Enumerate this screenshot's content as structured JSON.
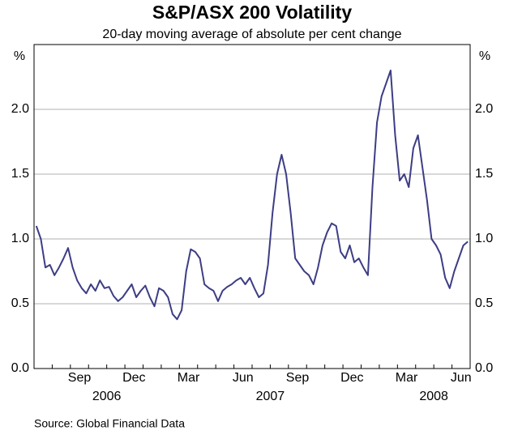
{
  "chart_data": {
    "type": "line",
    "title": "S&P/ASX 200 Volatility",
    "subtitle": "20-day moving average of absolute per cent change",
    "y_unit": "%",
    "source": "Source: Global Financial Data",
    "x": [
      "2006-07",
      "2006-07",
      "2006-07",
      "2006-07",
      "2006-08",
      "2006-08",
      "2006-08",
      "2006-08",
      "2006-09",
      "2006-09",
      "2006-09",
      "2006-09",
      "2006-10",
      "2006-10",
      "2006-10",
      "2006-10",
      "2006-11",
      "2006-11",
      "2006-11",
      "2006-11",
      "2006-12",
      "2006-12",
      "2006-12",
      "2006-12",
      "2007-01",
      "2007-01",
      "2007-01",
      "2007-01",
      "2007-02",
      "2007-02",
      "2007-02",
      "2007-02",
      "2007-03",
      "2007-03",
      "2007-03",
      "2007-03",
      "2007-04",
      "2007-04",
      "2007-04",
      "2007-04",
      "2007-05",
      "2007-05",
      "2007-05",
      "2007-05",
      "2007-06",
      "2007-06",
      "2007-06",
      "2007-06",
      "2007-07",
      "2007-07",
      "2007-07",
      "2007-07",
      "2007-08",
      "2007-08",
      "2007-08",
      "2007-08",
      "2007-09",
      "2007-09",
      "2007-09",
      "2007-09",
      "2007-10",
      "2007-10",
      "2007-10",
      "2007-10",
      "2007-11",
      "2007-11",
      "2007-11",
      "2007-11",
      "2007-12",
      "2007-12",
      "2007-12",
      "2007-12",
      "2008-01",
      "2008-01",
      "2008-01",
      "2008-01",
      "2008-02",
      "2008-02",
      "2008-02",
      "2008-02",
      "2008-03",
      "2008-03",
      "2008-03",
      "2008-03",
      "2008-04",
      "2008-04",
      "2008-04",
      "2008-04",
      "2008-05",
      "2008-05",
      "2008-05",
      "2008-05",
      "2008-06",
      "2008-06",
      "2008-06",
      "2008-06"
    ],
    "series": [
      {
        "name": "S&P/ASX 200",
        "color": "#3d3d85",
        "values": [
          1.1,
          1.0,
          0.78,
          0.8,
          0.72,
          0.78,
          0.85,
          0.93,
          0.78,
          0.68,
          0.62,
          0.58,
          0.65,
          0.6,
          0.68,
          0.62,
          0.63,
          0.56,
          0.52,
          0.55,
          0.6,
          0.65,
          0.55,
          0.6,
          0.64,
          0.55,
          0.48,
          0.62,
          0.6,
          0.55,
          0.42,
          0.38,
          0.45,
          0.75,
          0.92,
          0.9,
          0.85,
          0.65,
          0.62,
          0.6,
          0.52,
          0.6,
          0.63,
          0.65,
          0.68,
          0.7,
          0.65,
          0.7,
          0.62,
          0.55,
          0.58,
          0.8,
          1.2,
          1.5,
          1.65,
          1.5,
          1.2,
          0.85,
          0.8,
          0.75,
          0.72,
          0.65,
          0.78,
          0.95,
          1.05,
          1.12,
          1.1,
          0.9,
          0.85,
          0.95,
          0.82,
          0.85,
          0.78,
          0.72,
          1.4,
          1.9,
          2.1,
          2.2,
          2.3,
          1.8,
          1.45,
          1.5,
          1.4,
          1.7,
          1.8,
          1.55,
          1.3,
          1.0,
          0.95,
          0.88,
          0.7,
          0.62,
          0.75,
          0.85,
          0.95,
          0.98
        ]
      }
    ],
    "ylim": [
      0,
      2.5
    ],
    "yticks": [
      {
        "value": 0,
        "label": "0.0"
      },
      {
        "value": 0.5,
        "label": "0.5"
      },
      {
        "value": 1,
        "label": "1.0"
      },
      {
        "value": 1.5,
        "label": "1.5"
      },
      {
        "value": 2,
        "label": "2.0"
      }
    ],
    "xticks": [
      {
        "value": "2006-09",
        "label": "Sep"
      },
      {
        "value": "2006-12",
        "label": "Dec"
      },
      {
        "value": "2007-03",
        "label": "Mar"
      },
      {
        "value": "2007-06",
        "label": "Jun"
      },
      {
        "value": "2007-09",
        "label": "Sep"
      },
      {
        "value": "2007-12",
        "label": "Dec"
      },
      {
        "value": "2008-03",
        "label": "Mar"
      },
      {
        "value": "2008-06",
        "label": "Jun"
      }
    ],
    "year_labels": [
      {
        "value": "2006-11",
        "label": "2006"
      },
      {
        "value": "2007-08",
        "label": "2007"
      },
      {
        "value": "2008-05",
        "label": "2008"
      }
    ],
    "grid": true
  }
}
